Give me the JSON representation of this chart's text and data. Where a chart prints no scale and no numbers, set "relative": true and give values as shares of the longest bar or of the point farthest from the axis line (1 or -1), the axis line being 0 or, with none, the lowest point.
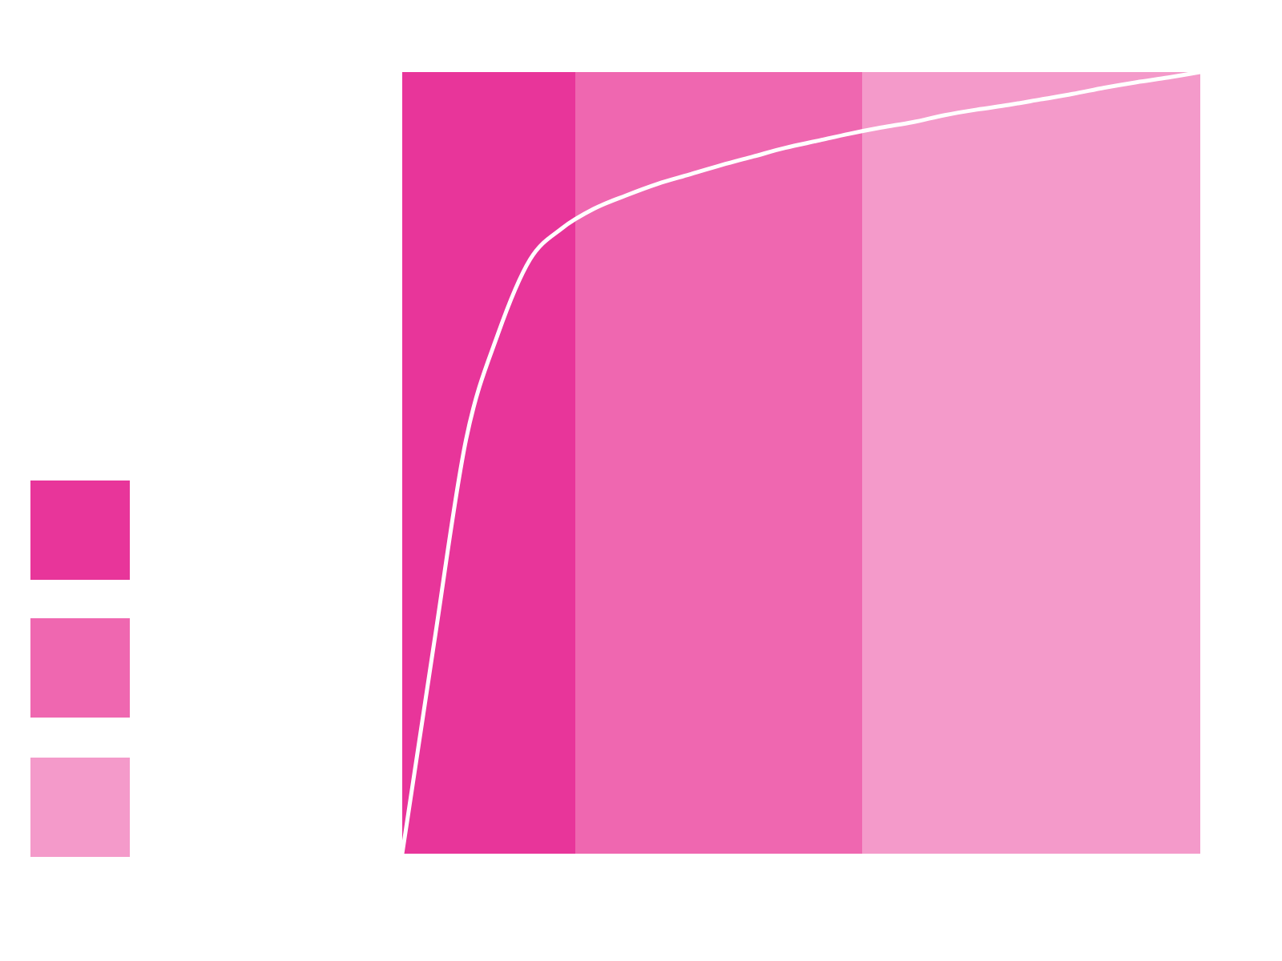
{
  "chart_data": {
    "type": "line",
    "relative": true,
    "tick_labels": false,
    "categories": [
      null,
      null,
      null,
      null,
      null,
      null,
      null,
      null,
      null,
      null,
      null,
      null,
      null,
      null,
      null,
      null,
      null,
      null,
      null,
      null,
      null,
      null,
      null,
      null,
      null,
      null
    ],
    "series": [
      {
        "color": "#ffffff",
        "values": [
          0,
          0.27,
          0.53,
          0.665,
          0.76,
          0.8,
          0.825,
          0.842,
          0.857,
          0.869,
          0.881,
          0.892,
          0.903,
          0.912,
          0.921,
          0.929,
          0.936,
          0.945,
          0.952,
          0.958,
          0.965,
          0.972,
          0.98,
          0.987,
          0.993,
          1
        ]
      }
    ]
  }
}
